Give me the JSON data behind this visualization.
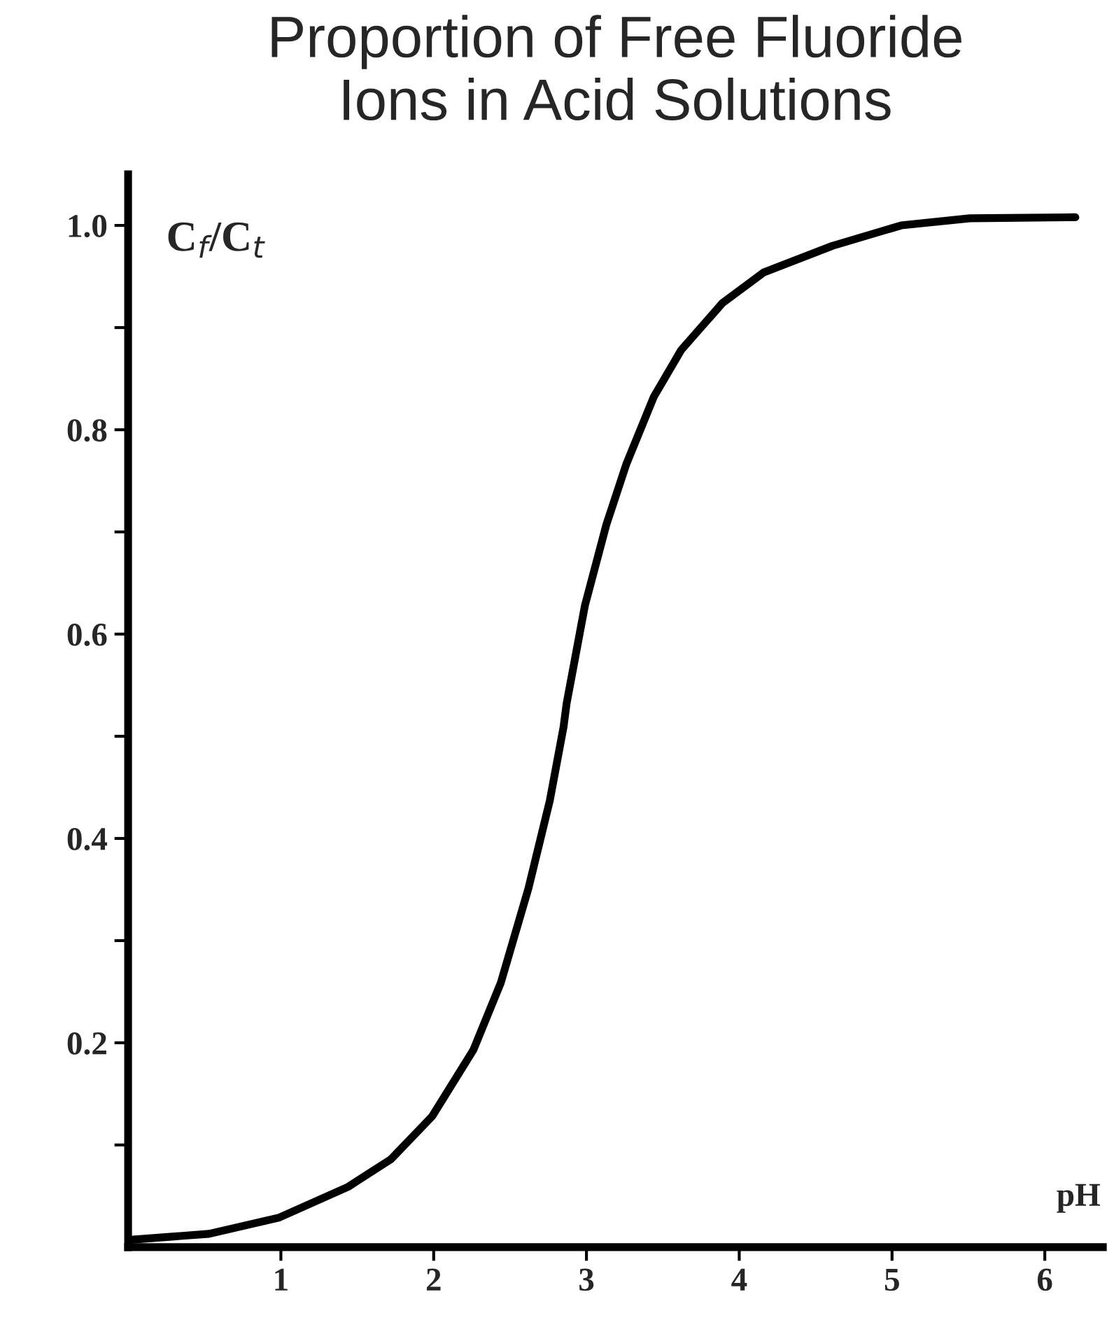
{
  "chart_data": {
    "type": "line",
    "title": "Proportion of Free Fluoride\nIons in Acid Solutions",
    "xlabel": "pH",
    "ylabel": "C$_{f}$/C$_{t}$",
    "x": [
      0,
      0.53,
      0.99,
      1.44,
      1.72,
      1.99,
      2.26,
      2.44,
      2.62,
      2.76,
      2.85,
      2.87,
      2.99,
      3.13,
      3.26,
      3.44,
      3.62,
      3.89,
      4.16,
      4.61,
      5.06,
      5.51,
      6.2
    ],
    "series": [
      {
        "color": "#000000",
        "values": [
          0.007,
          0.013,
          0.029,
          0.059,
          0.086,
          0.128,
          0.193,
          0.259,
          0.351,
          0.437,
          0.509,
          0.532,
          0.628,
          0.707,
          0.766,
          0.832,
          0.878,
          0.924,
          0.954,
          0.98,
          1.0,
          1.007,
          1.008
        ]
      }
    ],
    "xlim": [
      0,
      6.38
    ],
    "ylim": [
      0,
      1.05
    ],
    "xticks": [
      1,
      2,
      3,
      4,
      5,
      6
    ],
    "yticks": [
      {
        "value": 0.1,
        "label": null
      },
      0.2,
      {
        "value": 0.3,
        "label": null
      },
      0.4,
      {
        "value": 0.5,
        "label": null
      },
      0.6,
      {
        "value": 0.7,
        "label": null
      },
      0.8,
      {
        "value": 0.9,
        "label": null
      },
      {
        "value": 1.0,
        "label": "1.0"
      }
    ],
    "grid": false,
    "legend": false,
    "marker": "none",
    "line_style": "solid"
  }
}
